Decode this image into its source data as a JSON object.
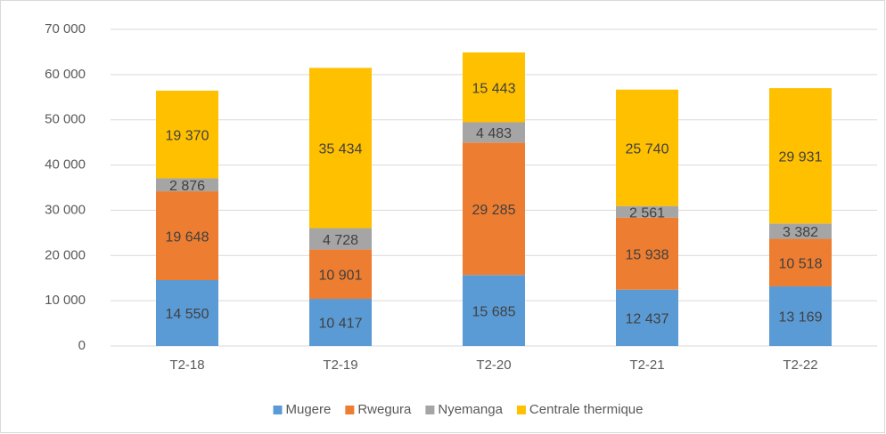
{
  "chart_data": {
    "type": "stacked_bar",
    "categories": [
      "T2-18",
      "T2-19",
      "T2-20",
      "T2-21",
      "T2-22"
    ],
    "series": [
      {
        "name": "Mugere",
        "color": "#5b9bd5",
        "values": [
          14550,
          10417,
          15685,
          12437,
          13169
        ],
        "value_labels": [
          "14 550",
          "10 417",
          "15 685",
          "12 437",
          "13 169"
        ]
      },
      {
        "name": "Rwegura",
        "color": "#ed7d31",
        "values": [
          19648,
          10901,
          29285,
          15938,
          10518
        ],
        "value_labels": [
          "19 648",
          "10 901",
          "29 285",
          "15 938",
          "10 518"
        ]
      },
      {
        "name": "Nyemanga",
        "color": "#a5a5a5",
        "values": [
          2876,
          4728,
          4483,
          2561,
          3382
        ],
        "value_labels": [
          "2 876",
          "4 728",
          "4 483",
          "2 561",
          "3 382"
        ]
      },
      {
        "name": "Centrale thermique",
        "color": "#ffc000",
        "values": [
          19370,
          35434,
          15443,
          25740,
          29931
        ],
        "value_labels": [
          "19 370",
          "35 434",
          "15 443",
          "25 740",
          "29 931"
        ]
      }
    ],
    "ylim": [
      0,
      70000
    ],
    "yticks": [
      0,
      {
        "value": 10000,
        "label": "10 000"
      },
      {
        "value": 20000,
        "label": "20 000"
      },
      {
        "value": 30000,
        "label": "30 000"
      },
      {
        "value": 40000,
        "label": "40 000"
      },
      {
        "value": 50000,
        "label": "50 000"
      },
      {
        "value": 60000,
        "label": "60 000"
      },
      {
        "value": 70000,
        "label": "70 000"
      }
    ],
    "grid": true,
    "legend": "bottom"
  }
}
